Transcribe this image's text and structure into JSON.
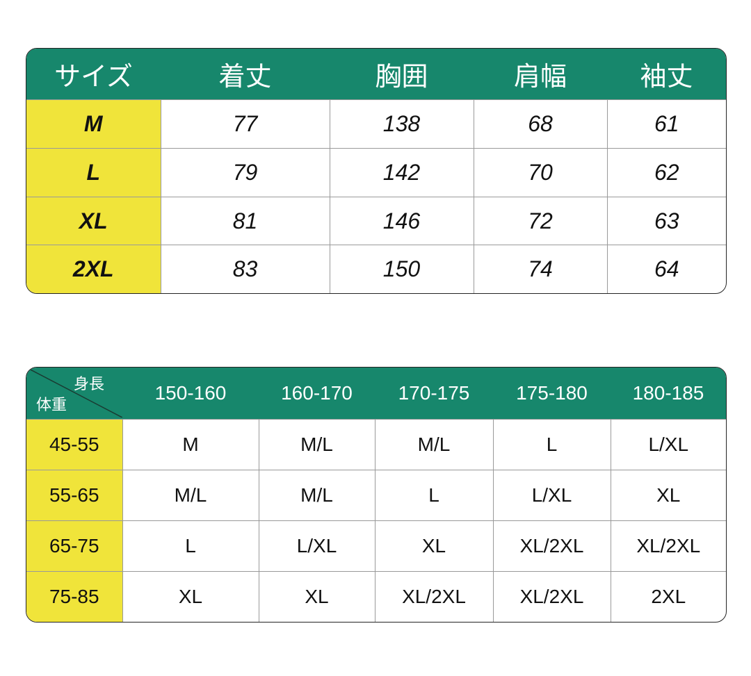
{
  "colors": {
    "header": "#17876c",
    "size_column": "#f0e43a"
  },
  "measurements": {
    "headers": [
      "サイズ",
      "着丈",
      "胸囲",
      "肩幅",
      "袖丈"
    ],
    "rows": [
      [
        "M",
        "77",
        "138",
        "68",
        "61"
      ],
      [
        "L",
        "79",
        "142",
        "70",
        "62"
      ],
      [
        "XL",
        "81",
        "146",
        "72",
        "63"
      ],
      [
        "2XL",
        "83",
        "150",
        "74",
        "64"
      ]
    ]
  },
  "recommendation": {
    "corner_height_label": "身長",
    "corner_weight_label": "体重",
    "heights": [
      "150-160",
      "160-170",
      "170-175",
      "175-180",
      "180-185"
    ],
    "rows": [
      [
        "45-55",
        "M",
        "M/L",
        "M/L",
        "L",
        "L/XL"
      ],
      [
        "55-65",
        "M/L",
        "M/L",
        "L",
        "L/XL",
        "XL"
      ],
      [
        "65-75",
        "L",
        "L/XL",
        "XL",
        "XL/2XL",
        "XL/2XL"
      ],
      [
        "75-85",
        "XL",
        "XL",
        "XL/2XL",
        "XL/2XL",
        "2XL"
      ]
    ]
  }
}
